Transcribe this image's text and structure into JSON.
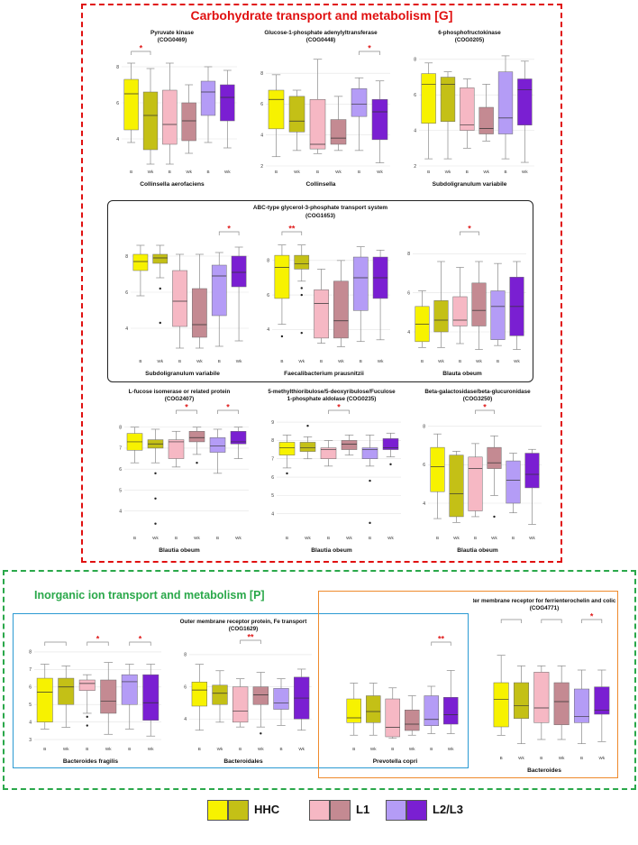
{
  "sections": {
    "carbohydrate": {
      "title": "Carbohydrate transport and metabolism [G]",
      "border_color": "#e01010"
    },
    "inorganic": {
      "title": "Inorganic ion transport and metabolism [P]",
      "border_color": "#2aa84a"
    }
  },
  "group_labels": {
    "abc": "",
    "fe": "",
    "ferr": ""
  },
  "legend": [
    {
      "label": "HHC",
      "colors": [
        "#f7f200",
        "#c4c016"
      ]
    },
    {
      "label": "L1",
      "colors": [
        "#f6b8c4",
        "#c48a92"
      ]
    },
    {
      "label": "L2/L3",
      "colors": [
        "#b49cf6",
        "#7a1fd2"
      ]
    }
  ],
  "chart_data": [
    {
      "id": "p1",
      "type": "box",
      "title": [
        "Pyruvate kinase",
        "(COG0469)"
      ],
      "taxon": "Collinsella aerofaciens",
      "categories": [
        "B",
        "Wk",
        "B",
        "Wk",
        "B",
        "Wk"
      ],
      "ylim": [
        2.5,
        8.5
      ],
      "yticks": [
        4,
        6,
        8
      ],
      "boxes": [
        {
          "min": 3.8,
          "q1": 4.5,
          "med": 6.5,
          "q3": 7.3,
          "max": 8.2
        },
        {
          "min": 2.6,
          "q1": 3.4,
          "med": 5.3,
          "q3": 6.6,
          "max": 7.9
        },
        {
          "min": 2.6,
          "q1": 3.7,
          "med": 4.8,
          "q3": 6.7,
          "max": 8.2
        },
        {
          "min": 3.2,
          "q1": 3.9,
          "med": 5.0,
          "q3": 6.0,
          "max": 7.0
        },
        {
          "min": 3.8,
          "q1": 5.3,
          "med": 6.6,
          "q3": 7.2,
          "max": 8.0
        },
        {
          "min": 3.5,
          "q1": 5.0,
          "med": 6.3,
          "q3": 7.0,
          "max": 7.8
        }
      ],
      "sig": [
        {
          "from": 0,
          "to": 1,
          "label": "*"
        }
      ]
    },
    {
      "id": "p2",
      "type": "box",
      "title": [
        "Glucose-1-phosphate adenylyltransferase",
        "(COG0448)"
      ],
      "taxon": "Collinsella",
      "categories": [
        "B",
        "Wk",
        "B",
        "Wk",
        "B",
        "Wk"
      ],
      "ylim": [
        2,
        9
      ],
      "yticks": [
        2,
        4,
        6,
        8
      ],
      "boxes": [
        {
          "min": 2.6,
          "q1": 4.4,
          "med": 6.3,
          "q3": 6.9,
          "max": 7.9
        },
        {
          "min": 3.0,
          "q1": 4.2,
          "med": 4.9,
          "q3": 6.5,
          "max": 6.9
        },
        {
          "min": 2.8,
          "q1": 3.1,
          "med": 3.4,
          "q3": 6.3,
          "max": 8.9
        },
        {
          "min": 3.0,
          "q1": 3.4,
          "med": 3.8,
          "q3": 5.0,
          "max": 6.5
        },
        {
          "min": 3.0,
          "q1": 5.2,
          "med": 6.0,
          "q3": 7.0,
          "max": 7.7
        },
        {
          "min": 2.2,
          "q1": 3.7,
          "med": 5.5,
          "q3": 6.3,
          "max": 7.5
        }
      ],
      "sig": [
        {
          "from": 4,
          "to": 5,
          "label": "*"
        }
      ]
    },
    {
      "id": "p3",
      "type": "box",
      "title": [
        "6-phosphofructokinase",
        "(COG0205)"
      ],
      "taxon": "Subdoligranulum variabile",
      "categories": [
        "B",
        "Wk",
        "B",
        "Wk",
        "B",
        "Wk"
      ],
      "ylim": [
        2,
        8.5
      ],
      "yticks": [
        2,
        4,
        6,
        8
      ],
      "boxes": [
        {
          "min": 2.4,
          "q1": 4.4,
          "med": 6.6,
          "q3": 7.2,
          "max": 7.8
        },
        {
          "min": 2.4,
          "q1": 4.5,
          "med": 6.6,
          "q3": 7.0,
          "max": 7.3
        },
        {
          "min": 3.0,
          "q1": 4.0,
          "med": 4.3,
          "q3": 6.4,
          "max": 6.9
        },
        {
          "min": 3.4,
          "q1": 3.8,
          "med": 4.1,
          "q3": 5.3,
          "max": 6.6
        },
        {
          "min": 2.4,
          "q1": 3.8,
          "med": 4.7,
          "q3": 7.3,
          "max": 8.2
        },
        {
          "min": 2.2,
          "q1": 4.3,
          "med": 6.3,
          "q3": 6.9,
          "max": 7.9
        }
      ],
      "sig": []
    },
    {
      "id": "p4",
      "type": "box",
      "title": [],
      "taxon": "Subdoligranulum variabile",
      "categories": [
        "B",
        "Wk",
        "B",
        "Wk",
        "B",
        "Wk"
      ],
      "ylim": [
        2.5,
        9
      ],
      "yticks": [
        4,
        6,
        8
      ],
      "boxes": [
        {
          "min": 5.8,
          "q1": 7.2,
          "med": 7.7,
          "q3": 8.1,
          "max": 8.6
        },
        {
          "min": 6.8,
          "q1": 7.6,
          "med": 7.9,
          "q3": 8.1,
          "max": 8.6
        },
        {
          "min": 2.9,
          "q1": 4.1,
          "med": 5.5,
          "q3": 7.2,
          "max": 8.1
        },
        {
          "min": 2.9,
          "q1": 3.5,
          "med": 4.2,
          "q3": 6.2,
          "max": 8.1
        },
        {
          "min": 3.0,
          "q1": 4.7,
          "med": 6.9,
          "q3": 7.5,
          "max": 8.2
        },
        {
          "min": 3.3,
          "q1": 6.3,
          "med": 7.1,
          "q3": 8.0,
          "max": 8.5
        }
      ],
      "outliers": [
        {
          "box": 1,
          "v": 6.2
        },
        {
          "box": 1,
          "v": 4.3
        }
      ],
      "sig": [
        {
          "from": 4,
          "to": 5,
          "label": "*"
        }
      ]
    },
    {
      "id": "p5",
      "type": "box",
      "title": [],
      "taxon": "Faecalibacterium prausnitzii",
      "categories": [
        "B",
        "Wk",
        "B",
        "Wk",
        "B",
        "Wk"
      ],
      "ylim": [
        2.5,
        9.3
      ],
      "yticks": [
        4,
        6,
        8
      ],
      "boxes": [
        {
          "min": 4.3,
          "q1": 5.8,
          "med": 7.6,
          "q3": 8.3,
          "max": 8.9
        },
        {
          "min": 6.8,
          "q1": 7.5,
          "med": 7.8,
          "q3": 8.3,
          "max": 8.9
        },
        {
          "min": 3.2,
          "q1": 3.5,
          "med": 5.5,
          "q3": 6.3,
          "max": 7.5
        },
        {
          "min": 3.0,
          "q1": 3.5,
          "med": 4.5,
          "q3": 6.8,
          "max": 8.0
        },
        {
          "min": 3.3,
          "q1": 5.1,
          "med": 7.0,
          "q3": 8.2,
          "max": 8.8
        },
        {
          "min": 3.4,
          "q1": 5.8,
          "med": 7.0,
          "q3": 8.2,
          "max": 8.6
        }
      ],
      "outliers": [
        {
          "box": 0,
          "v": 3.6
        },
        {
          "box": 1,
          "v": 6.4
        },
        {
          "box": 1,
          "v": 6.0
        },
        {
          "box": 1,
          "v": 3.8
        }
      ],
      "sig": [
        {
          "from": 0,
          "to": 1,
          "label": "**"
        }
      ]
    },
    {
      "id": "p6",
      "type": "box",
      "title": [],
      "taxon": "Blauta obeum",
      "categories": [
        "B",
        "Wk",
        "B",
        "Wk",
        "B",
        "Wk"
      ],
      "ylim": [
        2.8,
        8.8
      ],
      "yticks": [
        4,
        6,
        8
      ],
      "boxes": [
        {
          "min": 3.2,
          "q1": 3.5,
          "med": 4.4,
          "q3": 5.3,
          "max": 6.1
        },
        {
          "min": 3.2,
          "q1": 4.0,
          "med": 4.6,
          "q3": 5.6,
          "max": 7.6
        },
        {
          "min": 3.4,
          "q1": 4.3,
          "med": 4.6,
          "q3": 5.8,
          "max": 7.3
        },
        {
          "min": 3.1,
          "q1": 4.3,
          "med": 5.1,
          "q3": 6.5,
          "max": 7.6
        },
        {
          "min": 3.3,
          "q1": 3.6,
          "med": 5.3,
          "q3": 6.1,
          "max": 7.5
        },
        {
          "min": 3.1,
          "q1": 3.8,
          "med": 5.3,
          "q3": 6.8,
          "max": 7.6
        }
      ],
      "sig": [
        {
          "from": 2,
          "to": 3,
          "label": "*"
        }
      ]
    },
    {
      "id": "p7",
      "type": "box",
      "title": [
        "L-fucose isomerase or related protein",
        "(COG2407)"
      ],
      "taxon": "Blautia obeum",
      "categories": [
        "B",
        "Wk",
        "B",
        "Wk",
        "B",
        "Wk"
      ],
      "ylim": [
        3,
        8.5
      ],
      "yticks": [
        4,
        5,
        6,
        7,
        8
      ],
      "boxes": [
        {
          "min": 6.3,
          "q1": 6.9,
          "med": 7.3,
          "q3": 7.7,
          "max": 8.0
        },
        {
          "min": 6.3,
          "q1": 7.0,
          "med": 7.2,
          "q3": 7.4,
          "max": 7.9
        },
        {
          "min": 6.1,
          "q1": 6.5,
          "med": 7.3,
          "q3": 7.4,
          "max": 7.8
        },
        {
          "min": 6.7,
          "q1": 7.3,
          "med": 7.5,
          "q3": 7.8,
          "max": 8.0
        },
        {
          "min": 5.8,
          "q1": 6.8,
          "med": 7.1,
          "q3": 7.5,
          "max": 7.9
        },
        {
          "min": 6.5,
          "q1": 7.2,
          "med": 7.3,
          "q3": 7.8,
          "max": 8.0
        }
      ],
      "outliers": [
        {
          "box": 1,
          "v": 5.8
        },
        {
          "box": 1,
          "v": 4.6
        },
        {
          "box": 1,
          "v": 3.4
        },
        {
          "box": 3,
          "v": 6.3
        }
      ],
      "sig": [
        {
          "from": 2,
          "to": 3,
          "label": "*"
        },
        {
          "from": 4,
          "to": 5,
          "label": "*"
        }
      ]
    },
    {
      "id": "p8",
      "type": "box",
      "title": [
        "5-methylthioribulose/5-deoxyribulose/Fuculose",
        "1-phosphate aldolase (COG0235)"
      ],
      "taxon": "Blautia obeum",
      "categories": [
        "B",
        "Wk",
        "B",
        "Wk",
        "B",
        "Wk"
      ],
      "ylim": [
        3,
        9.3
      ],
      "yticks": [
        4,
        5,
        6,
        7,
        8,
        9
      ],
      "boxes": [
        {
          "min": 6.5,
          "q1": 7.2,
          "med": 7.6,
          "q3": 7.9,
          "max": 8.3
        },
        {
          "min": 7.0,
          "q1": 7.4,
          "med": 7.6,
          "q3": 7.9,
          "max": 8.2
        },
        {
          "min": 6.6,
          "q1": 7.0,
          "med": 7.5,
          "q3": 7.6,
          "max": 8.0
        },
        {
          "min": 7.2,
          "q1": 7.5,
          "med": 7.8,
          "q3": 8.0,
          "max": 8.3
        },
        {
          "min": 6.6,
          "q1": 7.0,
          "med": 7.5,
          "q3": 7.6,
          "max": 8.3
        },
        {
          "min": 7.1,
          "q1": 7.5,
          "med": 7.6,
          "q3": 8.1,
          "max": 8.4
        }
      ],
      "outliers": [
        {
          "box": 0,
          "v": 6.2
        },
        {
          "box": 1,
          "v": 8.8
        },
        {
          "box": 4,
          "v": 5.8
        },
        {
          "box": 4,
          "v": 3.5
        },
        {
          "box": 5,
          "v": 6.7
        }
      ],
      "sig": [
        {
          "from": 2,
          "to": 3,
          "label": "*"
        }
      ]
    },
    {
      "id": "p9",
      "type": "box",
      "title": [
        "Beta-galactosidase/beta-glucuronidase",
        "(COG3250)"
      ],
      "taxon": "Blautia obeum",
      "categories": [
        "B",
        "Wk",
        "B",
        "Wk",
        "B",
        "Wk"
      ],
      "ylim": [
        2.5,
        8.5
      ],
      "yticks": [
        4,
        6,
        8
      ],
      "boxes": [
        {
          "min": 3.2,
          "q1": 4.6,
          "med": 5.9,
          "q3": 6.9,
          "max": 7.6
        },
        {
          "min": 3.0,
          "q1": 3.3,
          "med": 4.5,
          "q3": 6.5,
          "max": 6.7
        },
        {
          "min": 3.3,
          "q1": 3.6,
          "med": 5.8,
          "q3": 6.4,
          "max": 7.1
        },
        {
          "min": 4.4,
          "q1": 5.8,
          "med": 6.1,
          "q3": 6.9,
          "max": 7.5
        },
        {
          "min": 3.5,
          "q1": 4.0,
          "med": 5.2,
          "q3": 6.2,
          "max": 6.6
        },
        {
          "min": 2.9,
          "q1": 4.8,
          "med": 5.5,
          "q3": 6.6,
          "max": 6.8
        }
      ],
      "outliers": [
        {
          "box": 3,
          "v": 3.3
        }
      ],
      "sig": [
        {
          "from": 2,
          "to": 3,
          "label": "*"
        }
      ]
    },
    {
      "id": "p10",
      "type": "box",
      "title": [],
      "taxon": "Bacteroides fragilis",
      "categories": [
        "B",
        "Wk",
        "B",
        "Wk",
        "B",
        "Wk"
      ],
      "ylim": [
        2.8,
        8.2
      ],
      "yticks": [
        3,
        4,
        5,
        6,
        7,
        8
      ],
      "boxes": [
        {
          "min": 3.6,
          "q1": 4.0,
          "med": 5.7,
          "q3": 6.5,
          "max": 7.3
        },
        {
          "min": 3.7,
          "q1": 5.0,
          "med": 6.0,
          "q3": 6.5,
          "max": 7.2
        },
        {
          "min": 4.5,
          "q1": 5.8,
          "med": 6.2,
          "q3": 6.4,
          "max": 6.7
        },
        {
          "min": 3.3,
          "q1": 4.5,
          "med": 5.2,
          "q3": 6.4,
          "max": 7.4
        },
        {
          "min": 3.6,
          "q1": 5.0,
          "med": 6.3,
          "q3": 6.7,
          "max": 7.3
        },
        {
          "min": 3.2,
          "q1": 4.1,
          "med": 5.1,
          "q3": 6.7,
          "max": 7.3
        }
      ],
      "outliers": [
        {
          "box": 2,
          "v": 4.3
        },
        {
          "box": 2,
          "v": 3.8
        }
      ],
      "brackets": [
        {
          "from": 0,
          "to": 1,
          "label": ""
        },
        {
          "from": 2,
          "to": 3,
          "label": "*"
        },
        {
          "from": 4,
          "to": 5,
          "label": "*"
        }
      ]
    },
    {
      "id": "p11",
      "type": "box",
      "title": [
        "Outer membrane receptor protein, Fe transport",
        "(COG1629)"
      ],
      "taxon": "Bacteroidales",
      "categories": [
        "B",
        "Wk",
        "B",
        "Wk",
        "B",
        "Wk"
      ],
      "ylim": [
        2.5,
        8.5
      ],
      "yticks": [
        4,
        6,
        8
      ],
      "boxes": [
        {
          "min": 3.3,
          "q1": 4.8,
          "med": 5.8,
          "q3": 6.3,
          "max": 7.4
        },
        {
          "min": 3.8,
          "q1": 4.9,
          "med": 5.6,
          "q3": 6.1,
          "max": 7.0
        },
        {
          "min": 3.5,
          "q1": 3.8,
          "med": 4.5,
          "q3": 6.0,
          "max": 6.5
        },
        {
          "min": 3.5,
          "q1": 4.9,
          "med": 5.5,
          "q3": 6.0,
          "max": 6.9
        },
        {
          "min": 3.6,
          "q1": 4.6,
          "med": 5.0,
          "q3": 5.9,
          "max": 6.5
        },
        {
          "min": 3.3,
          "q1": 4.0,
          "med": 5.3,
          "q3": 6.6,
          "max": 7.1
        }
      ],
      "outliers": [
        {
          "box": 3,
          "v": 3.1
        }
      ],
      "sig": [
        {
          "from": 2,
          "to": 3,
          "label": "**"
        }
      ]
    },
    {
      "id": "p12",
      "type": "box",
      "title": [],
      "taxon": "Prevotella copri",
      "categories": [
        "B",
        "Wk",
        "B",
        "Wk",
        "B",
        "Wk"
      ],
      "ylim": [
        3,
        9
      ],
      "yticks": [],
      "boxes": [
        {
          "min": 3.5,
          "q1": 4.3,
          "med": 4.6,
          "q3": 5.8,
          "max": 6.8
        },
        {
          "min": 3.5,
          "q1": 4.3,
          "med": 5.0,
          "q3": 6.0,
          "max": 6.8
        },
        {
          "min": 3.3,
          "q1": 3.4,
          "med": 4.0,
          "q3": 5.8,
          "max": 6.5
        },
        {
          "min": 3.5,
          "q1": 3.8,
          "med": 4.2,
          "q3": 5.1,
          "max": 6.0
        },
        {
          "min": 3.6,
          "q1": 4.1,
          "med": 4.5,
          "q3": 6.0,
          "max": 6.6
        },
        {
          "min": 3.6,
          "q1": 4.2,
          "med": 4.8,
          "q3": 5.9,
          "max": 7.6
        }
      ],
      "sig": [
        {
          "from": 4,
          "to": 5,
          "label": "**"
        }
      ]
    },
    {
      "id": "p13",
      "type": "box",
      "title": [
        "Outer membrane receptor for ferrienterochelin and colicins",
        "(COG4771)"
      ],
      "taxon": "Bacteroides",
      "categories": [
        "B",
        "Wk",
        "B",
        "Wk",
        "B",
        "Wk"
      ],
      "ylim": [
        3,
        9
      ],
      "yticks": [],
      "boxes": [
        {
          "min": 3.8,
          "q1": 4.2,
          "med": 5.5,
          "q3": 6.3,
          "max": 7.6
        },
        {
          "min": 3.4,
          "q1": 4.6,
          "med": 5.2,
          "q3": 6.3,
          "max": 7.1
        },
        {
          "min": 3.6,
          "q1": 4.4,
          "med": 5.1,
          "q3": 6.8,
          "max": 7.1
        },
        {
          "min": 3.6,
          "q1": 4.3,
          "med": 5.4,
          "q3": 6.3,
          "max": 7.1
        },
        {
          "min": 3.4,
          "q1": 4.4,
          "med": 4.7,
          "q3": 6.0,
          "max": 6.9
        },
        {
          "min": 3.5,
          "q1": 4.8,
          "med": 5.0,
          "q3": 6.1,
          "max": 6.9
        }
      ],
      "brackets": [
        {
          "from": 0,
          "to": 1,
          "label": ""
        },
        {
          "from": 2,
          "to": 3,
          "label": ""
        },
        {
          "from": 4,
          "to": 5,
          "label": "*"
        }
      ]
    }
  ]
}
